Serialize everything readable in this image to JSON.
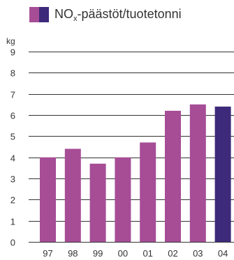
{
  "chart_data": {
    "type": "bar",
    "legend": {
      "label_main": "NO",
      "label_sub": "x",
      "label_rest": "-päästöt/tuotetonni"
    },
    "ylabel": "kg",
    "ylim": [
      0,
      9
    ],
    "yticks": [
      "0",
      "1",
      "2",
      "3",
      "4",
      "5",
      "6",
      "7",
      "8",
      "9"
    ],
    "grid": true,
    "categories": [
      "97",
      "98",
      "99",
      "00",
      "01",
      "02",
      "03",
      "04"
    ],
    "values": [
      4.0,
      4.4,
      3.7,
      4.0,
      4.7,
      6.2,
      6.5,
      6.4
    ],
    "colors": {
      "default": "#a64d96",
      "highlight": "#3d2a7a",
      "grid": "#333333"
    },
    "highlight_index": 7
  }
}
